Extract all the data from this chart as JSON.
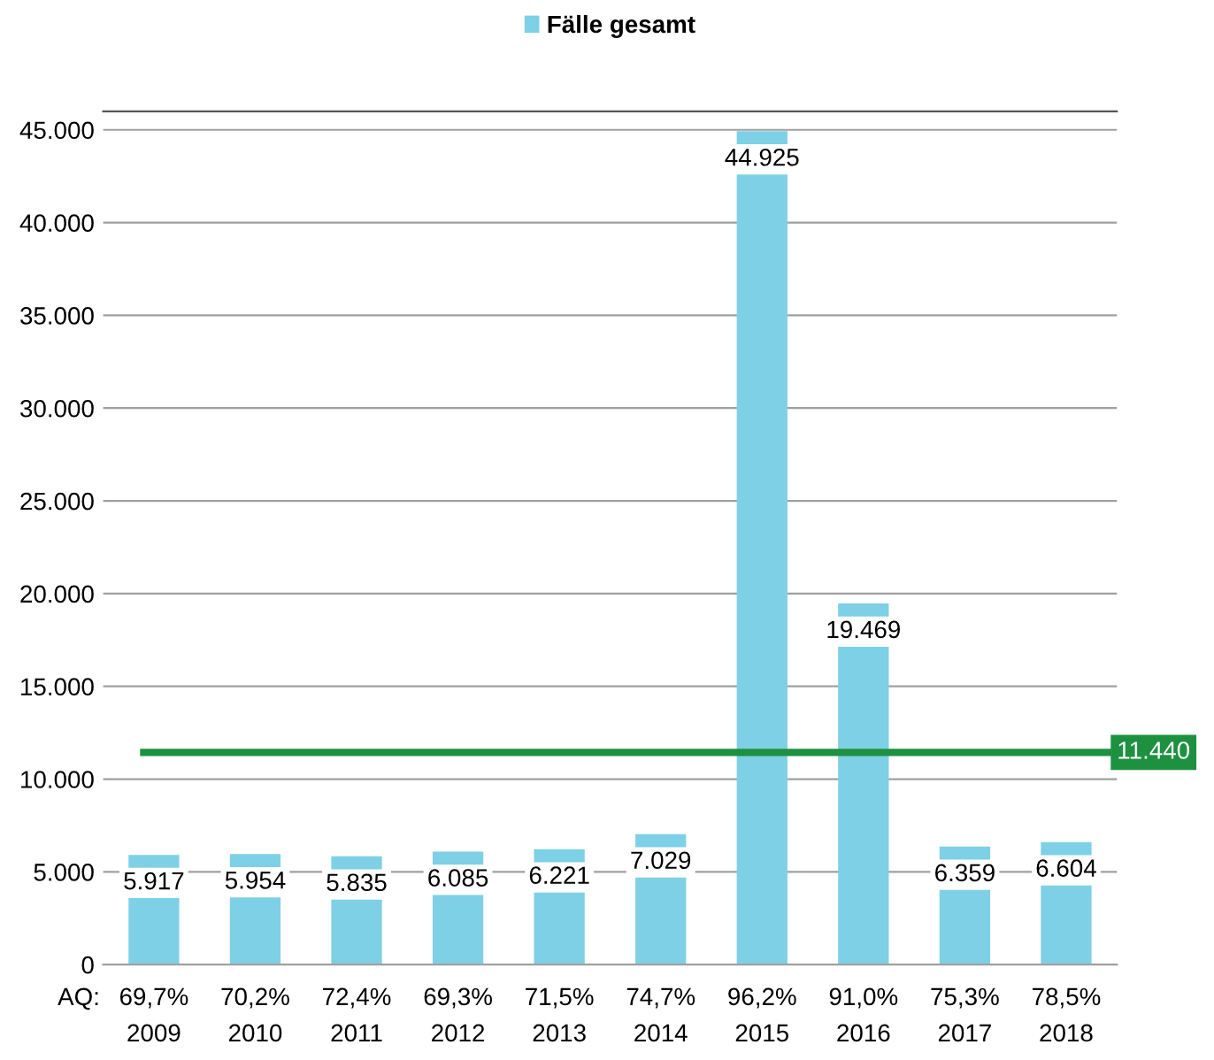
{
  "chart_data": {
    "type": "bar",
    "categories": [
      "2009",
      "2010",
      "2011",
      "2012",
      "2013",
      "2014",
      "2015",
      "2016",
      "2017",
      "2018"
    ],
    "series": [
      {
        "name": "Fälle gesamt",
        "color": "#7dd0e6",
        "values": [
          5917,
          5954,
          5835,
          6085,
          6221,
          7029,
          44925,
          19469,
          6359,
          6604
        ]
      }
    ],
    "value_labels": [
      "5.917",
      "5.954",
      "5.835",
      "6.085",
      "6.221",
      "7.029",
      "44.925",
      "19.469",
      "6.359",
      "6.604"
    ],
    "ylim": [
      0,
      46000
    ],
    "yticks": [
      {
        "value": 0,
        "label": "0"
      },
      {
        "value": 5000,
        "label": "5.000"
      },
      {
        "value": 10000,
        "label": "10.000"
      },
      {
        "value": 15000,
        "label": "15.000"
      },
      {
        "value": 20000,
        "label": "20.000"
      },
      {
        "value": 25000,
        "label": "25.000"
      },
      {
        "value": 30000,
        "label": "30.000"
      },
      {
        "value": 35000,
        "label": "35.000"
      },
      {
        "value": 40000,
        "label": "40.000"
      },
      {
        "value": 45000,
        "label": "45.000"
      }
    ],
    "ref_lines": [
      {
        "axis": "y",
        "value": 11440,
        "label": "11.440",
        "color": "#1e9141"
      }
    ],
    "annotations": [
      "AQ:",
      "69,7%",
      "70,2%",
      "72,4%",
      "69,3%",
      "71,5%",
      "74,7%",
      "96,2%",
      "91,0%",
      "75,3%",
      "78,5%"
    ],
    "grid": "y",
    "legend": "top"
  }
}
